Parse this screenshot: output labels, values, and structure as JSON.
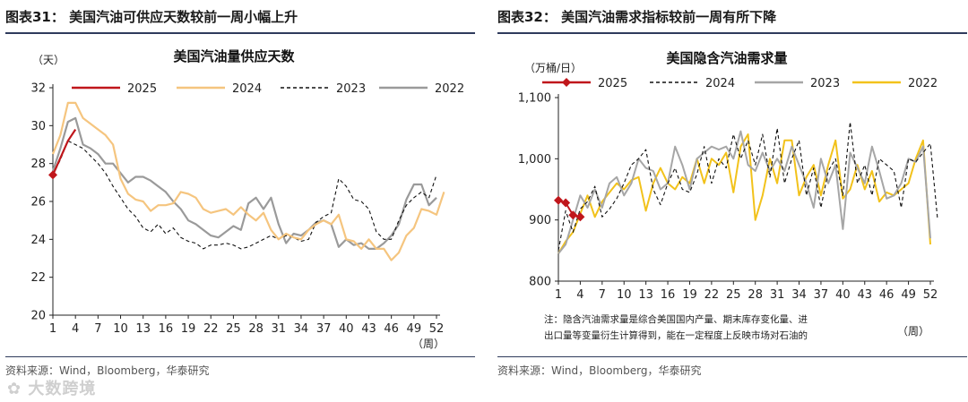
{
  "left": {
    "figure_title": "图表31：  美国汽油可供应天数较前一周小幅上升",
    "source": "资料来源：Wind，Bloomberg，华泰研究"
  },
  "right": {
    "figure_title": "图表32：  美国汽油需求指标较前一周有所下降",
    "source": "资料来源：Wind，Bloomberg，华泰研究"
  },
  "watermark": "大数跨境",
  "chart_data": [
    {
      "type": "line",
      "title": "美国汽油量供应天数",
      "ylabel": "（天）",
      "xlabel": "（周）",
      "ylim": [
        20,
        32
      ],
      "yticks": [
        20,
        22,
        24,
        26,
        28,
        30,
        32
      ],
      "xlim": [
        1,
        52
      ],
      "xticks": [
        1,
        4,
        7,
        10,
        13,
        16,
        19,
        22,
        25,
        28,
        31,
        34,
        37,
        40,
        43,
        46,
        49,
        52
      ],
      "legend_position": "top",
      "grid": false,
      "series": [
        {
          "name": "2025",
          "color": "#c0161b",
          "style": "solid",
          "width": 2.2,
          "marker": "diamond",
          "marker_first_only": true,
          "values": [
            27.4,
            28.3,
            29.2,
            29.8
          ]
        },
        {
          "name": "2024",
          "color": "#f5c57f",
          "style": "solid",
          "width": 2.2,
          "values": [
            28.5,
            29.5,
            31.2,
            31.2,
            30.4,
            30.1,
            29.8,
            29.5,
            29.0,
            27.2,
            26.4,
            26.1,
            26.0,
            25.5,
            25.8,
            25.8,
            25.9,
            26.5,
            26.4,
            26.2,
            25.6,
            25.4,
            25.5,
            25.6,
            25.3,
            25.7,
            25.3,
            25.0,
            25.4,
            24.5,
            24.0,
            24.3,
            24.1,
            24.0,
            24.5,
            24.8,
            25.0,
            24.8,
            25.3,
            24.0,
            23.9,
            23.5,
            24.0,
            23.5,
            23.5,
            22.9,
            23.3,
            24.2,
            24.6,
            25.6,
            25.5,
            25.3,
            26.5
          ]
        },
        {
          "name": "2023",
          "color": "#111111",
          "style": "dashed",
          "width": 1.1,
          "values": [
            27.4,
            28.2,
            29.2,
            29.0,
            28.8,
            28.4,
            28.0,
            27.5,
            26.8,
            26.2,
            25.6,
            25.2,
            24.6,
            24.4,
            24.8,
            24.3,
            24.6,
            24.1,
            23.9,
            23.8,
            23.5,
            23.7,
            23.7,
            23.8,
            23.7,
            23.5,
            23.6,
            23.8,
            24.0,
            24.2,
            24.0,
            24.2,
            24.1,
            23.9,
            24.0,
            24.9,
            25.2,
            25.4,
            27.2,
            26.8,
            26.1,
            26.0,
            25.6,
            24.4,
            24.0,
            24.0,
            25.0,
            25.8,
            26.2,
            26.5,
            26.2,
            27.4
          ]
        },
        {
          "name": "2022",
          "color": "#9a9a9a",
          "style": "solid",
          "width": 2.2,
          "values": [
            27.6,
            28.8,
            30.2,
            30.4,
            29.0,
            28.8,
            28.5,
            28.0,
            28.0,
            27.5,
            27.0,
            27.3,
            27.3,
            27.1,
            26.8,
            26.5,
            26.0,
            25.6,
            25.0,
            24.8,
            24.5,
            24.2,
            24.1,
            24.4,
            24.7,
            24.5,
            25.9,
            26.2,
            25.6,
            26.2,
            24.8,
            23.8,
            24.3,
            24.2,
            24.5,
            24.9,
            25.0,
            24.8,
            23.6,
            24.0,
            23.7,
            23.8,
            23.5,
            23.5,
            23.8,
            24.2,
            24.8,
            26.1,
            26.9,
            26.9,
            25.8,
            26.2
          ]
        }
      ]
    },
    {
      "type": "line",
      "title": "美国隐含汽油需求量",
      "ylabel": "（万桶/日）",
      "xlabel": "（周）",
      "ylim": [
        800,
        1100
      ],
      "yticks": [
        800,
        900,
        1000,
        1100
      ],
      "ytick_labels": [
        "800",
        "900",
        "1,000",
        "1,100"
      ],
      "xlim": [
        1,
        52
      ],
      "xticks": [
        1,
        4,
        7,
        10,
        13,
        16,
        19,
        22,
        25,
        28,
        31,
        34,
        37,
        40,
        43,
        46,
        49,
        52
      ],
      "legend_position": "top",
      "grid": false,
      "note_lines": [
        "注：隐含汽油需求量是综合美国国内产量、期末库存变化量、进",
        "出口量等变量衍生计算得到，能在一定程度上反映市场对石油的"
      ],
      "series": [
        {
          "name": "2025",
          "color": "#c0161b",
          "style": "solid",
          "width": 2.0,
          "marker": "diamond",
          "values": [
            932,
            928,
            908,
            905
          ]
        },
        {
          "name": "2024",
          "color": "#111111",
          "style": "dashed",
          "width": 1.1,
          "values": [
            850,
            915,
            880,
            918,
            930,
            955,
            905,
            918,
            935,
            960,
            990,
            1000,
            1015,
            950,
            925,
            960,
            985,
            950,
            945,
            975,
            1020,
            960,
            1000,
            985,
            1040,
            1000,
            1030,
            990,
            1040,
            970,
            1050,
            960,
            1000,
            1030,
            940,
            985,
            920,
            980,
            1000,
            940,
            1060,
            960,
            990,
            940,
            1000,
            990,
            980,
            920,
            1000,
            995,
            1010,
            1025,
            900
          ]
        },
        {
          "name": "2023",
          "color": "#a6a6a6",
          "style": "solid",
          "width": 2.0,
          "values": [
            845,
            860,
            900,
            940,
            920,
            950,
            920,
            960,
            970,
            940,
            960,
            1000,
            985,
            980,
            950,
            960,
            1020,
            990,
            950,
            1000,
            1010,
            1020,
            1015,
            1020,
            1000,
            1045,
            990,
            980,
            1010,
            980,
            1000,
            980,
            1020,
            990,
            960,
            920,
            1000,
            960,
            990,
            885,
            1010,
            985,
            960,
            1020,
            980,
            935,
            940,
            960,
            1000,
            995,
            1020,
            870
          ]
        },
        {
          "name": "2022",
          "color": "#f2c21b",
          "style": "solid",
          "width": 2.0,
          "values": [
            845,
            865,
            880,
            910,
            940,
            905,
            930,
            945,
            960,
            950,
            965,
            970,
            915,
            960,
            985,
            960,
            950,
            970,
            960,
            1000,
            960,
            1000,
            990,
            1010,
            945,
            1020,
            1040,
            900,
            940,
            1000,
            960,
            1030,
            1030,
            940,
            970,
            990,
            940,
            990,
            1030,
            935,
            950,
            990,
            950,
            980,
            930,
            945,
            940,
            950,
            960,
            1000,
            1030,
            860
          ]
        }
      ]
    }
  ]
}
